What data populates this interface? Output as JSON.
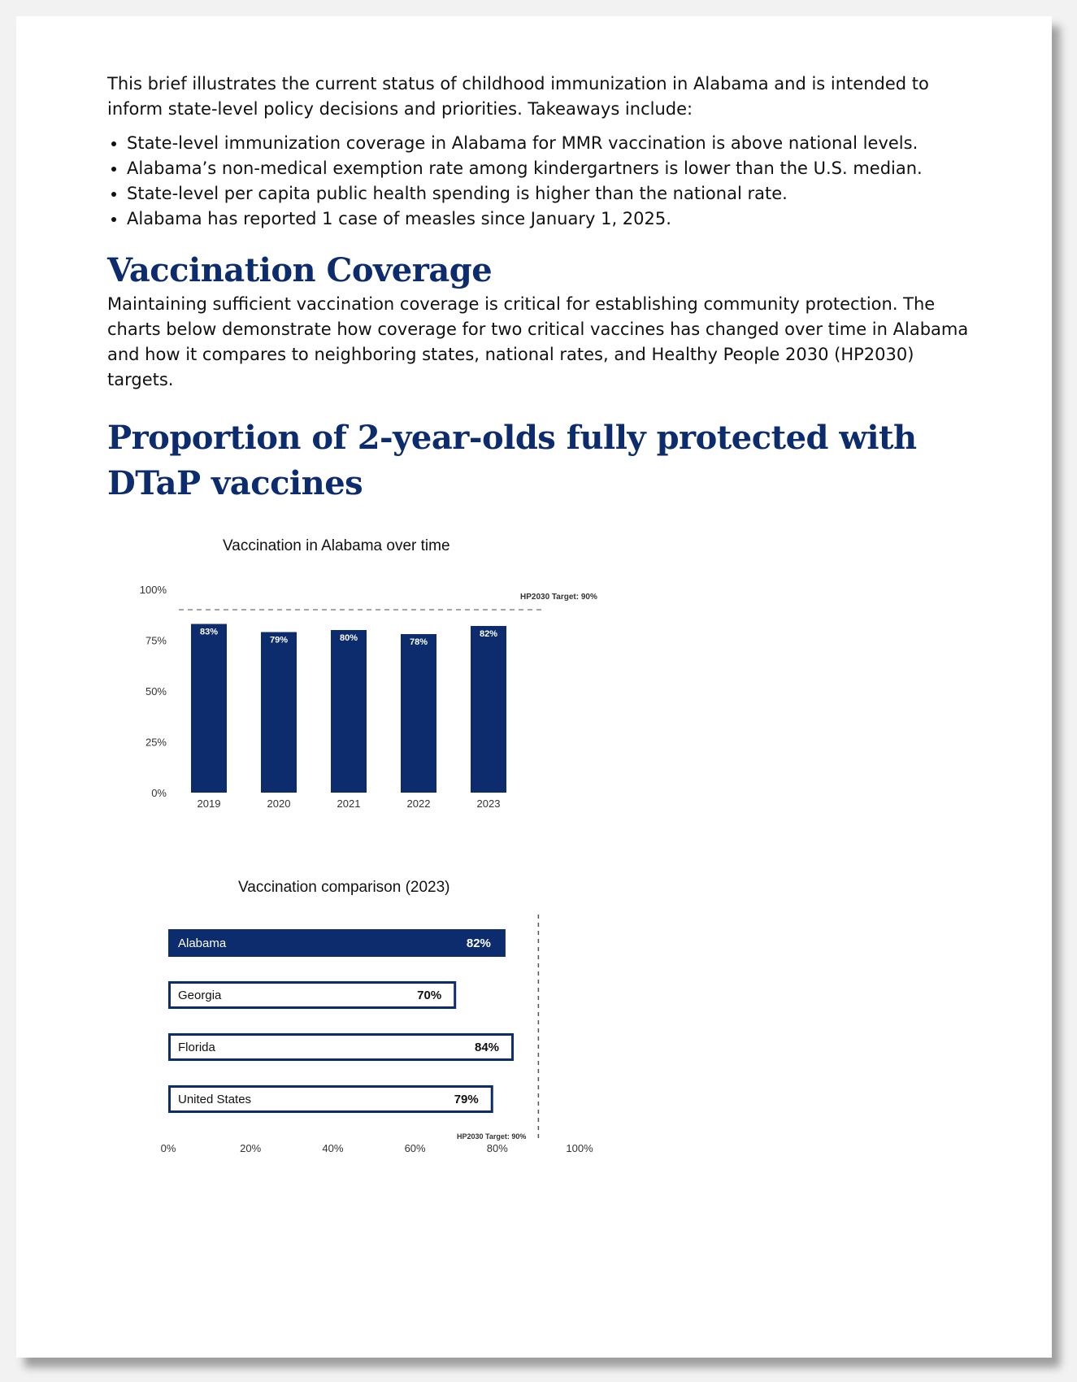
{
  "intro": {
    "text": "This brief illustrates the current status of childhood immunization in Alabama and is intended to inform state-level policy decisions and priorities. Takeaways include:",
    "bullets": [
      "State-level immunization coverage in Alabama for MMR vaccination is above national levels.",
      "Alabama’s non-medical exemption rate among kindergartners is lower than the U.S. median.",
      "State-level per capita public health spending is higher than the national rate.",
      "Alabama has reported 1 case of measles since January 1, 2025."
    ]
  },
  "section": {
    "title": "Vaccination Coverage",
    "text": "Maintaining sufficient vaccination coverage is critical for establishing community protection. The charts below demonstrate how coverage for two critical vaccines has changed over time in Alabama and how it compares to neighboring states, national rates, and Healthy People 2030 (HP2030) targets."
  },
  "chart_heading": "Proportion of 2-year-olds fully protected with DTaP vaccines",
  "colors": {
    "navy": "#0c2c6e",
    "text": "#111111"
  },
  "chart_data": [
    {
      "type": "bar",
      "title": "Vaccination in Alabama over time",
      "categories": [
        "2019",
        "2020",
        "2021",
        "2022",
        "2023"
      ],
      "values": [
        83,
        79,
        80,
        78,
        82
      ],
      "data_labels": [
        "83%",
        "79%",
        "80%",
        "78%",
        "82%"
      ],
      "ylim": [
        0,
        100
      ],
      "yticks": [
        "0%",
        "25%",
        "50%",
        "75%",
        "100%"
      ],
      "target": {
        "value": 90,
        "label": "HP2030 Target: 90%"
      },
      "xlabel": "",
      "ylabel": ""
    },
    {
      "type": "bar",
      "orientation": "horizontal",
      "title": "Vaccination comparison (2023)",
      "categories": [
        "Alabama",
        "Georgia",
        "Florida",
        "United States"
      ],
      "values": [
        82,
        70,
        84,
        79
      ],
      "data_labels": [
        "82%",
        "70%",
        "84%",
        "79%"
      ],
      "highlight": "Alabama",
      "xlim": [
        0,
        100
      ],
      "xticks": [
        "0%",
        "20%",
        "40%",
        "60%",
        "80%",
        "100%"
      ],
      "target": {
        "value": 90,
        "label": "HP2030 Target: 90%"
      }
    }
  ]
}
